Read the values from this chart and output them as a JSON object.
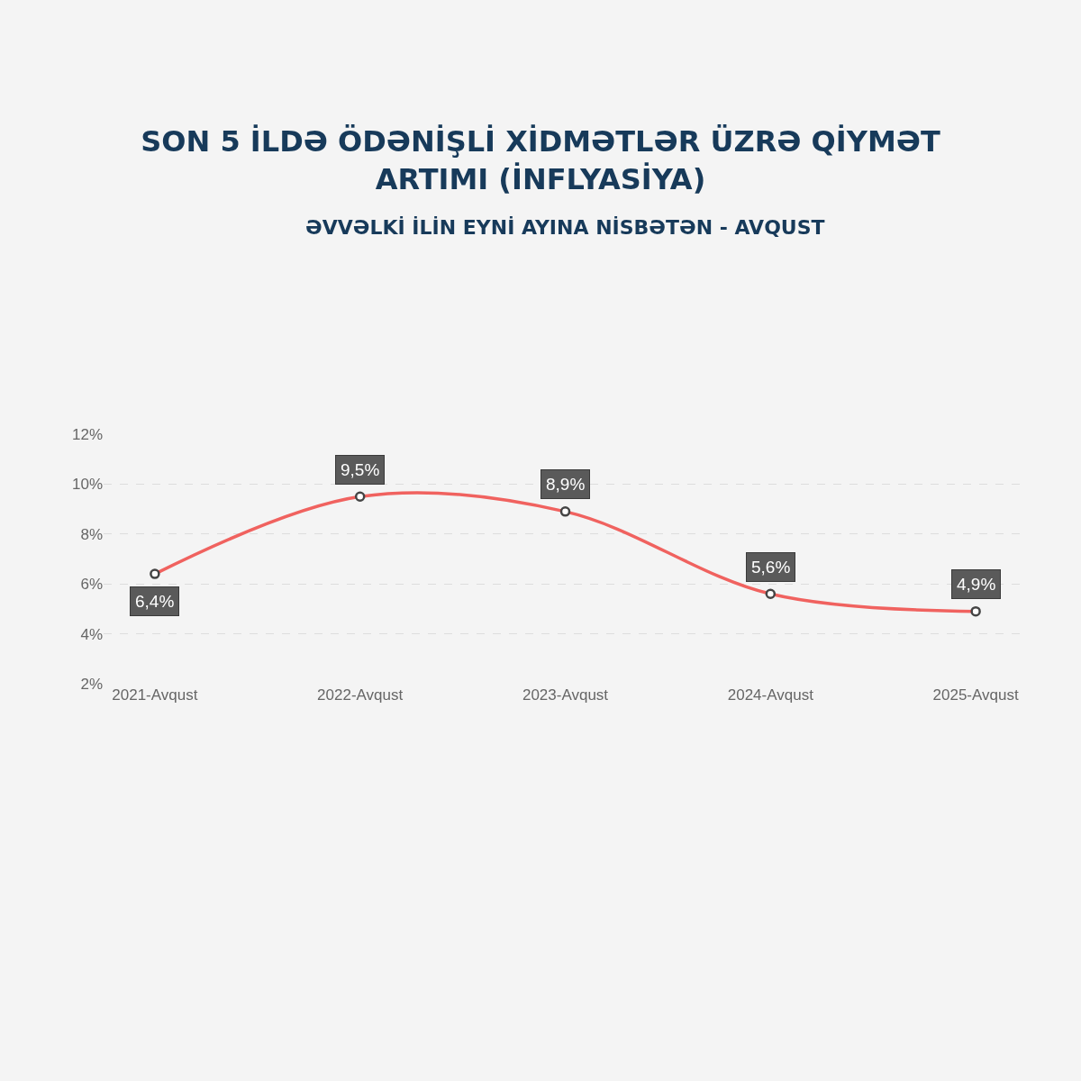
{
  "chart_data": {
    "type": "line",
    "title": "SON 5 İLDƏ ÖDƏNİŞLİ XİDMƏTLƏR ÜZRƏ QİYMƏT\nARTIMI (İNFLYASİYA)",
    "subtitle": "ƏVVƏLKİ İLİN EYNİ AYINA NİSBƏTƏN - AVQUST",
    "categories": [
      "2021-Avqust",
      "2022-Avqust",
      "2023-Avqust",
      "2024-Avqust",
      "2025-Avqust"
    ],
    "series": [
      {
        "color": "#f0625f",
        "values": [
          6.4,
          9.5,
          8.9,
          5.6,
          4.9
        ],
        "value_labels": [
          "6,4%",
          "9,5%",
          "8,9%",
          "5,6%",
          "4,9%"
        ]
      }
    ],
    "ylim": [
      2,
      12
    ],
    "yticks": [
      {
        "value": 2,
        "label": "2%"
      },
      {
        "value": 4,
        "label": "4%"
      },
      {
        "value": 6,
        "label": "6%"
      },
      {
        "value": 8,
        "label": "8%"
      },
      {
        "value": 10,
        "label": "10%"
      },
      {
        "value": 12,
        "label": "12%"
      }
    ],
    "grid": "y",
    "marker": "circle",
    "line_style": "solid"
  }
}
